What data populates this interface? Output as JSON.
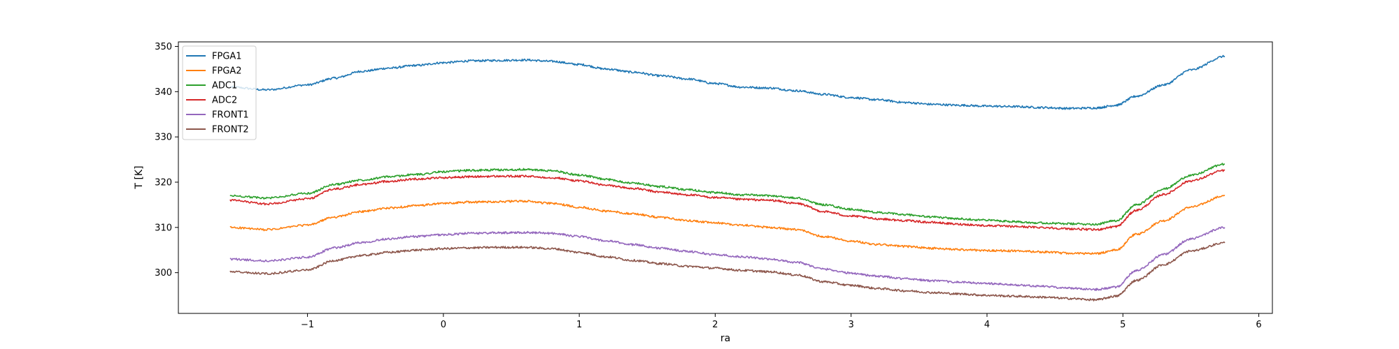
{
  "chart_data": {
    "type": "line",
    "title": "",
    "xlabel": "ra",
    "ylabel": "T [K]",
    "xlim": [
      -1.95,
      6.1
    ],
    "ylim": [
      291,
      351
    ],
    "x_ticks": [
      -1,
      0,
      1,
      2,
      3,
      4,
      5,
      6
    ],
    "y_ticks": [
      300,
      310,
      320,
      330,
      340,
      350
    ],
    "x_tick_labels": [
      "−1",
      "0",
      "1",
      "2",
      "3",
      "4",
      "5",
      "6"
    ],
    "y_tick_labels": [
      "300",
      "310",
      "320",
      "330",
      "340",
      "350"
    ],
    "grid": false,
    "legend_position": "upper-left",
    "x": [
      -1.57,
      -1.3,
      -1.0,
      -0.8,
      -0.6,
      -0.4,
      -0.2,
      0.0,
      0.2,
      0.4,
      0.6,
      0.8,
      1.0,
      1.2,
      1.4,
      1.6,
      1.8,
      2.0,
      2.2,
      2.4,
      2.6,
      2.8,
      3.0,
      3.2,
      3.4,
      3.6,
      3.8,
      4.0,
      4.2,
      4.4,
      4.6,
      4.8,
      4.95,
      5.1,
      5.3,
      5.5,
      5.75
    ],
    "series": [
      {
        "name": "FPGA1",
        "color": "#1f77b4",
        "values": [
          341.0,
          340.4,
          341.5,
          343.0,
          344.5,
          345.2,
          345.8,
          346.4,
          346.8,
          346.9,
          347.0,
          346.7,
          346.0,
          345.0,
          344.3,
          343.5,
          342.8,
          341.8,
          341.0,
          340.8,
          340.2,
          339.4,
          338.7,
          338.2,
          337.6,
          337.2,
          337.0,
          336.8,
          336.7,
          336.5,
          336.3,
          336.4,
          337.0,
          339.0,
          341.5,
          344.8,
          347.8
        ]
      },
      {
        "name": "FPGA2",
        "color": "#ff7f0e",
        "values": [
          310.0,
          309.5,
          310.5,
          312.3,
          313.5,
          314.3,
          314.8,
          315.3,
          315.6,
          315.7,
          315.8,
          315.3,
          314.5,
          313.6,
          313.0,
          312.2,
          311.5,
          311.0,
          310.5,
          310.0,
          309.5,
          308.0,
          307.0,
          306.2,
          305.8,
          305.4,
          305.1,
          304.9,
          304.8,
          304.6,
          304.3,
          304.2,
          305.0,
          308.5,
          311.5,
          314.5,
          317.0
        ]
      },
      {
        "name": "ADC1",
        "color": "#2ca02c",
        "values": [
          317.0,
          316.5,
          317.5,
          319.5,
          320.5,
          321.2,
          321.7,
          322.3,
          322.6,
          322.7,
          322.8,
          322.5,
          321.6,
          320.6,
          319.8,
          319.0,
          318.3,
          317.7,
          317.2,
          317.0,
          316.5,
          315.0,
          314.0,
          313.3,
          312.8,
          312.3,
          311.9,
          311.6,
          311.3,
          311.0,
          310.8,
          310.7,
          311.5,
          315.0,
          318.5,
          321.5,
          324.0
        ]
      },
      {
        "name": "ADC2",
        "color": "#d62728",
        "values": [
          316.0,
          315.2,
          316.3,
          318.5,
          319.5,
          320.2,
          320.7,
          321.0,
          321.2,
          321.3,
          321.3,
          321.0,
          320.3,
          319.3,
          318.6,
          317.8,
          317.2,
          316.6,
          316.2,
          316.0,
          315.3,
          313.5,
          312.5,
          311.9,
          311.5,
          311.1,
          310.7,
          310.4,
          310.2,
          310.0,
          309.7,
          309.5,
          310.2,
          313.8,
          317.3,
          320.3,
          322.6
        ]
      },
      {
        "name": "FRONT1",
        "color": "#9467bd",
        "values": [
          303.0,
          302.6,
          303.4,
          305.5,
          306.7,
          307.5,
          308.0,
          308.4,
          308.7,
          308.8,
          308.9,
          308.7,
          308.0,
          307.0,
          306.2,
          305.4,
          304.7,
          304.0,
          303.5,
          303.0,
          302.3,
          300.8,
          299.9,
          299.2,
          298.7,
          298.2,
          297.9,
          297.6,
          297.3,
          297.0,
          296.6,
          296.3,
          296.8,
          300.5,
          304.0,
          307.5,
          310.0
        ]
      },
      {
        "name": "FRONT2",
        "color": "#8c564b",
        "values": [
          300.2,
          299.8,
          300.6,
          302.7,
          303.8,
          304.5,
          305.0,
          305.3,
          305.5,
          305.6,
          305.6,
          305.3,
          304.5,
          303.5,
          302.7,
          302.0,
          301.4,
          301.0,
          300.5,
          300.2,
          299.5,
          298.0,
          297.2,
          296.5,
          296.0,
          295.6,
          295.3,
          295.0,
          294.8,
          294.6,
          294.3,
          294.0,
          294.8,
          298.3,
          301.8,
          304.8,
          306.6
        ]
      }
    ]
  }
}
